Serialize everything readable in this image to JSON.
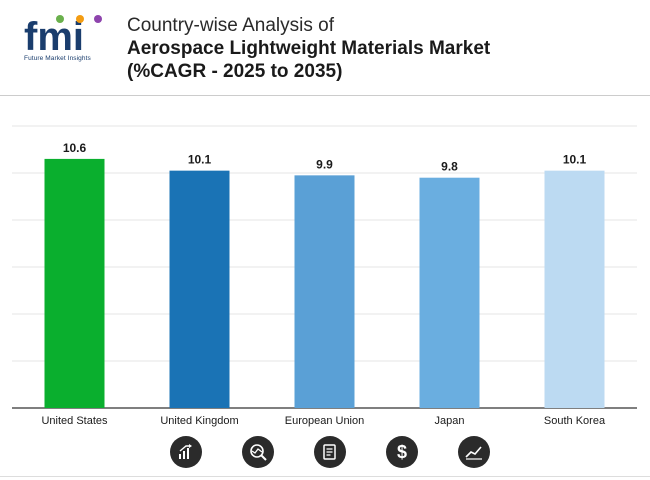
{
  "header": {
    "logo_text": "fmi",
    "logo_tagline": "Future Market Insights",
    "title_line1": "Country-wise Analysis of",
    "title_line2": "Aerospace Lightweight Materials Market",
    "title_line3": "(%CAGR - 2025 to 2035)"
  },
  "chart_data": {
    "type": "bar",
    "title": "Country-wise Analysis of Aerospace Lightweight Materials Market (%CAGR - 2025 to 2035)",
    "categories": [
      "United States",
      "United Kingdom",
      "European Union",
      "Japan",
      "South Korea"
    ],
    "values": [
      10.6,
      10.1,
      9.9,
      9.8,
      10.1
    ],
    "labels": [
      "10.6",
      "10.1",
      "9.9",
      "9.8",
      "10.1"
    ],
    "colors": [
      "#0aaf2e",
      "#1a73b5",
      "#5aa0d6",
      "#6aaee0",
      "#bcdaf2"
    ],
    "xlabel": "",
    "ylabel": "",
    "ylim": [
      0,
      12
    ],
    "grid": true
  },
  "footer_icons": [
    "growth-chart-icon",
    "analysis-icon",
    "document-icon",
    "dollar-icon",
    "trend-icon"
  ]
}
